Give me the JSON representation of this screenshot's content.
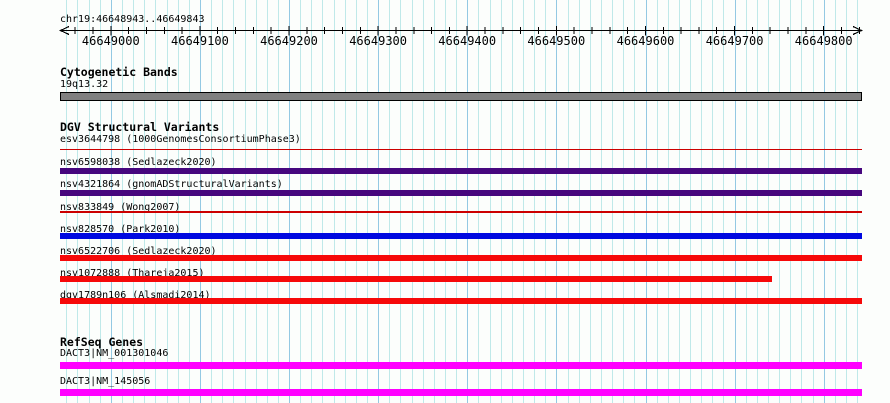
{
  "region": {
    "title": "chr19:46648943..46649843",
    "chromosome": "chr19",
    "start": 46648943,
    "end": 46649843
  },
  "ruler": {
    "major_tick_step": 100,
    "minor_tick_step": 20,
    "grid_minor_step_bp": 12.5,
    "major_tick_labels": [
      "46649000",
      "46649100",
      "46649200",
      "46649300",
      "46649400",
      "46649500",
      "46649600",
      "46649700",
      "46649800"
    ]
  },
  "colors": {
    "background": "#FCFEFC",
    "grid_minor": "#BFE9E9",
    "grid_major": "#93C9E3",
    "ruler": "#000000",
    "text": "#000000"
  },
  "sections": [
    {
      "title": "Cytogenetic Bands",
      "tracks": [
        {
          "label": "19q13.32",
          "glyph": "band",
          "color": "#808080",
          "border_color": "#000000",
          "start": 46648943,
          "end": 46649843
        }
      ]
    },
    {
      "title": "DGV Structural Variants",
      "tracks": [
        {
          "label": "esv3644798 (1000GenomesConsortiumPhase3)",
          "glyph": "line",
          "color": "#CC0000",
          "start": 46648943,
          "end": 46649843
        },
        {
          "label": "nsv6598038 (Sedlazeck2020)",
          "glyph": "bar",
          "color": "#46077E",
          "start": 46648943,
          "end": 46649843
        },
        {
          "label": "nsv4321864 (gnomADStructuralVariants)",
          "glyph": "bar",
          "color": "#46077E",
          "start": 46648943,
          "end": 46649843
        },
        {
          "label": "nsv833849 (Wong2007)",
          "glyph": "line",
          "color": "#CC0000",
          "start": 46648943,
          "end": 46649843
        },
        {
          "label": "nsv828570 (Park2010)",
          "glyph": "bar",
          "color": "#0009E0",
          "start": 46648943,
          "end": 46649843
        },
        {
          "label": "nsv6522706 (Sedlazeck2020)",
          "glyph": "bar",
          "color": "#F60909",
          "start": 46648943,
          "end": 46649843
        },
        {
          "label": "nsv1072888 (Thareja2015)",
          "glyph": "bar",
          "color": "#F60909",
          "start": 46648943,
          "end": 46649742
        },
        {
          "label": "dgv1789n106 (Alsmadi2014)",
          "glyph": "bar",
          "color": "#F60909",
          "start": 46648943,
          "end": 46649843
        }
      ]
    },
    {
      "title": "RefSeq Genes",
      "tracks": [
        {
          "label": "DACT3|NM_001301046",
          "glyph": "bar",
          "color": "#FF00FF",
          "start": 46648943,
          "end": 46649843
        },
        {
          "label": "DACT3|NM_145056",
          "glyph": "bar",
          "color": "#FF00FF",
          "start": 46648943,
          "end": 46649843
        }
      ]
    }
  ]
}
